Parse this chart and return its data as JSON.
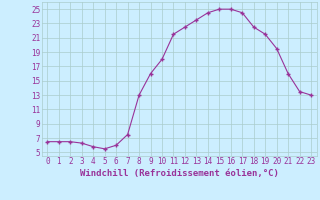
{
  "x": [
    0,
    1,
    2,
    3,
    4,
    5,
    6,
    7,
    8,
    9,
    10,
    11,
    12,
    13,
    14,
    15,
    16,
    17,
    18,
    19,
    20,
    21,
    22,
    23
  ],
  "y": [
    6.5,
    6.5,
    6.5,
    6.3,
    5.8,
    5.5,
    6.0,
    7.5,
    13.0,
    16.0,
    18.0,
    21.5,
    22.5,
    23.5,
    24.5,
    25.0,
    25.0,
    24.5,
    22.5,
    21.5,
    19.5,
    16.0,
    13.5,
    13.0
  ],
  "line_color": "#993399",
  "marker": "+",
  "bg_color": "#cceeff",
  "grid_color": "#aacccc",
  "tick_color": "#993399",
  "xlabel": "Windchill (Refroidissement éolien,°C)",
  "xlim": [
    -0.5,
    23.5
  ],
  "ylim": [
    4.5,
    26
  ],
  "yticks": [
    5,
    7,
    9,
    11,
    13,
    15,
    17,
    19,
    21,
    23,
    25
  ],
  "xticks": [
    0,
    1,
    2,
    3,
    4,
    5,
    6,
    7,
    8,
    9,
    10,
    11,
    12,
    13,
    14,
    15,
    16,
    17,
    18,
    19,
    20,
    21,
    22,
    23
  ],
  "tick_fontsize": 5.5,
  "label_fontsize": 6.5
}
